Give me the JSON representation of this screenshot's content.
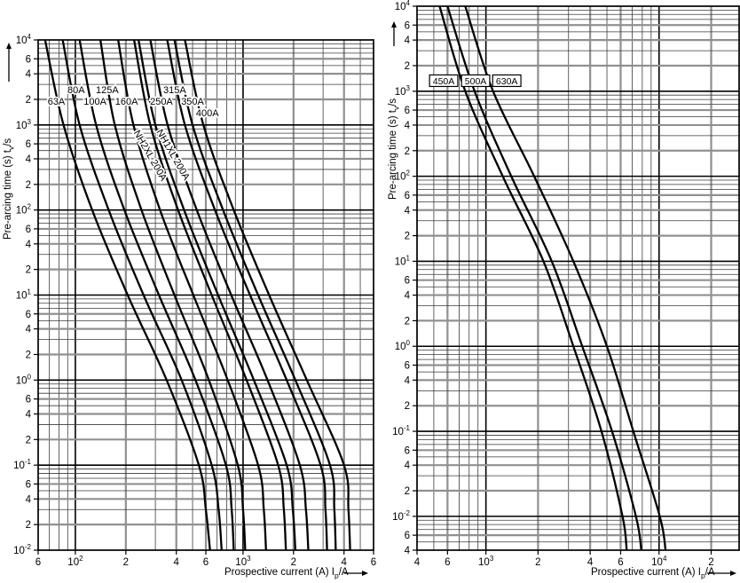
{
  "page": {
    "background": "#ffffff"
  },
  "colors": {
    "curve": "#000000",
    "decade_line": "#000000",
    "thick_sub_line": "#909090",
    "minor_line": "#3a3a3a",
    "text": "#000000"
  },
  "axis_titles": {
    "y_pre": "Pre-arcing time (s) t",
    "y_sub": "v",
    "y_post": "/s",
    "x_pre": "Prospective current (A) I",
    "x_sub": "p",
    "x_post": "/A"
  },
  "chart_data": [
    {
      "id": "left",
      "type": "line",
      "xlabel": "Prospective current (A) Ip/A",
      "ylabel": "Pre-arcing time (s) tv/s",
      "x_axis": {
        "scale": "log",
        "range": [
          60,
          6000
        ],
        "ticks": [
          [
            60,
            "6"
          ],
          [
            100,
            "10^2"
          ],
          [
            200,
            "2"
          ],
          [
            400,
            "4"
          ],
          [
            600,
            "6"
          ],
          [
            1000,
            "10^3"
          ],
          [
            2000,
            "2"
          ],
          [
            4000,
            "4"
          ],
          [
            6000,
            "6"
          ]
        ]
      },
      "y_axis": {
        "scale": "log",
        "range": [
          0.01,
          10000
        ],
        "ticks": [
          [
            10000,
            "10^4"
          ],
          [
            6000,
            "6"
          ],
          [
            4000,
            "4"
          ],
          [
            2000,
            "2"
          ],
          [
            1000,
            "10^3"
          ],
          [
            600,
            "6"
          ],
          [
            400,
            "4"
          ],
          [
            200,
            "2"
          ],
          [
            100,
            "10^2"
          ],
          [
            60,
            "6"
          ],
          [
            40,
            "4"
          ],
          [
            20,
            "2"
          ],
          [
            10,
            "10^1"
          ],
          [
            6,
            "6"
          ],
          [
            4,
            "4"
          ],
          [
            2,
            "2"
          ],
          [
            1,
            "10^0"
          ],
          [
            0.6,
            "6"
          ],
          [
            0.4,
            "4"
          ],
          [
            0.2,
            "2"
          ],
          [
            0.1,
            "10^-1"
          ],
          [
            0.06,
            "6"
          ],
          [
            0.04,
            "4"
          ],
          [
            0.02,
            "2"
          ],
          [
            0.01,
            "10^-2"
          ]
        ]
      },
      "series": [
        {
          "name": "63A",
          "points": [
            [
              66,
              10000
            ],
            [
              85,
              1000
            ],
            [
              126,
              100
            ],
            [
              205,
              10
            ],
            [
              350,
              1
            ],
            [
              545,
              0.1
            ],
            [
              600,
              0.03
            ],
            [
              635,
              0.01
            ]
          ]
        },
        {
          "name": "80A",
          "points": [
            [
              84,
              10000
            ],
            [
              106,
              1000
            ],
            [
              158,
              100
            ],
            [
              255,
              10
            ],
            [
              430,
              1
            ],
            [
              650,
              0.1
            ],
            [
              715,
              0.03
            ],
            [
              745,
              0.01
            ]
          ]
        },
        {
          "name": "100A",
          "points": [
            [
              106,
              10000
            ],
            [
              133,
              1000
            ],
            [
              196,
              100
            ],
            [
              315,
              10
            ],
            [
              520,
              1
            ],
            [
              790,
              0.1
            ],
            [
              855,
              0.03
            ],
            [
              880,
              0.01
            ]
          ]
        },
        {
          "name": "125A",
          "points": [
            [
              141,
              10000
            ],
            [
              172,
              1000
            ],
            [
              248,
              100
            ],
            [
              390,
              10
            ],
            [
              625,
              1
            ],
            [
              930,
              0.1
            ],
            [
              1000,
              0.03
            ],
            [
              1030,
              0.01
            ]
          ]
        },
        {
          "name": "160A",
          "points": [
            [
              180,
              10000
            ],
            [
              222,
              1000
            ],
            [
              320,
              100
            ],
            [
              505,
              10
            ],
            [
              810,
              1
            ],
            [
              1230,
              0.1
            ],
            [
              1330,
              0.03
            ],
            [
              1370,
              0.01
            ]
          ]
        },
        {
          "name": "NH2XL 200A",
          "points": [
            [
              224,
              10000
            ],
            [
              280,
              1000
            ],
            [
              410,
              100
            ],
            [
              650,
              10
            ],
            [
              1050,
              1
            ],
            [
              1620,
              0.1
            ],
            [
              1750,
              0.03
            ],
            [
              1800,
              0.01
            ]
          ]
        },
        {
          "name": "NH1XL 200A",
          "points": [
            [
              238,
              10000
            ],
            [
              300,
              1000
            ],
            [
              445,
              100
            ],
            [
              710,
              10
            ],
            [
              1160,
              1
            ],
            [
              1820,
              0.1
            ],
            [
              1980,
              0.03
            ],
            [
              2050,
              0.01
            ]
          ]
        },
        {
          "name": "250A",
          "points": [
            [
              280,
              10000
            ],
            [
              355,
              1000
            ],
            [
              530,
              100
            ],
            [
              850,
              10
            ],
            [
              1400,
              1
            ],
            [
              2180,
              0.1
            ],
            [
              2370,
              0.03
            ],
            [
              2450,
              0.01
            ]
          ]
        },
        {
          "name": "315A",
          "points": [
            [
              353,
              10000
            ],
            [
              450,
              1000
            ],
            [
              680,
              100
            ],
            [
              1100,
              10
            ],
            [
              1820,
              1
            ],
            [
              2900,
              0.1
            ],
            [
              3100,
              0.03
            ],
            [
              3170,
              0.01
            ]
          ]
        },
        {
          "name": "350A",
          "points": [
            [
              390,
              10000
            ],
            [
              500,
              1000
            ],
            [
              760,
              100
            ],
            [
              1230,
              10
            ],
            [
              2050,
              1
            ],
            [
              3300,
              0.1
            ],
            [
              3500,
              0.03
            ],
            [
              3570,
              0.01
            ]
          ]
        },
        {
          "name": "400A",
          "points": [
            [
              450,
              10000
            ],
            [
              580,
              1000
            ],
            [
              880,
              100
            ],
            [
              1430,
              10
            ],
            [
              2400,
              1
            ],
            [
              4000,
              0.1
            ],
            [
              4250,
              0.03
            ],
            [
              4350,
              0.01
            ]
          ]
        }
      ],
      "annotations": [
        {
          "text": "80A",
          "at": [
            101,
            2600
          ],
          "style": "plain",
          "rotate": 0
        },
        {
          "text": "125A",
          "at": [
            155,
            2600
          ],
          "style": "plain",
          "rotate": 0
        },
        {
          "text": "315A",
          "at": [
            391,
            2600
          ],
          "style": "plain",
          "rotate": 0
        },
        {
          "text": "63A",
          "at": [
            77,
            1900
          ],
          "style": "plain",
          "rotate": 0
        },
        {
          "text": "100A",
          "at": [
            131,
            1900
          ],
          "style": "plain",
          "rotate": 0
        },
        {
          "text": "160A",
          "at": [
            202,
            1900
          ],
          "style": "plain",
          "rotate": 0
        },
        {
          "text": "250A",
          "at": [
            326,
            1900
          ],
          "style": "plain",
          "rotate": 0
        },
        {
          "text": "350A",
          "at": [
            500,
            1900
          ],
          "style": "plain",
          "rotate": 0
        },
        {
          "text": "400A",
          "at": [
            613,
            1400
          ],
          "style": "plain",
          "rotate": 0
        },
        {
          "text": "NH2XL 200A",
          "at": [
            281,
            440
          ],
          "style": "plain",
          "rotate": 60
        },
        {
          "text": "NH1XL 200A",
          "at": [
            385,
            450
          ],
          "style": "plain",
          "rotate": 60
        }
      ]
    },
    {
      "id": "right",
      "type": "line",
      "xlabel": "Prospective current (A) Ip/A",
      "ylabel": "Pre-arcing time (s) tv/s",
      "x_axis": {
        "scale": "log",
        "range": [
          400,
          29000
        ],
        "ticks": [
          [
            400,
            "4"
          ],
          [
            600,
            "6"
          ],
          [
            1000,
            "10^3"
          ],
          [
            2000,
            "2"
          ],
          [
            4000,
            "4"
          ],
          [
            6000,
            "6"
          ],
          [
            10000,
            "10^4"
          ],
          [
            20000,
            "2"
          ]
        ]
      },
      "y_axis": {
        "scale": "log",
        "range": [
          0.004,
          10000
        ],
        "ticks": [
          [
            10000,
            "10^4"
          ],
          [
            6000,
            "6"
          ],
          [
            4000,
            "4"
          ],
          [
            2000,
            "2"
          ],
          [
            1000,
            "10^3"
          ],
          [
            600,
            "6"
          ],
          [
            400,
            "4"
          ],
          [
            200,
            "2"
          ],
          [
            100,
            "10^2"
          ],
          [
            60,
            "6"
          ],
          [
            40,
            "4"
          ],
          [
            20,
            "2"
          ],
          [
            10,
            "10^1"
          ],
          [
            6,
            "6"
          ],
          [
            4,
            "4"
          ],
          [
            2,
            "2"
          ],
          [
            1,
            "10^0"
          ],
          [
            0.6,
            "6"
          ],
          [
            0.4,
            "4"
          ],
          [
            0.2,
            "2"
          ],
          [
            0.1,
            "10^-1"
          ],
          [
            0.06,
            "6"
          ],
          [
            0.04,
            "4"
          ],
          [
            0.02,
            "2"
          ],
          [
            0.01,
            "10^-2"
          ],
          [
            0.006,
            "6"
          ],
          [
            0.004,
            "4"
          ]
        ]
      },
      "series": [
        {
          "name": "450A",
          "points": [
            [
              540,
              10000
            ],
            [
              760,
              1000
            ],
            [
              1250,
              100
            ],
            [
              2150,
              10
            ],
            [
              3200,
              1
            ],
            [
              4650,
              0.1
            ],
            [
              6150,
              0.01
            ],
            [
              6500,
              0.004
            ]
          ]
        },
        {
          "name": "500A",
          "points": [
            [
              600,
              10000
            ],
            [
              860,
              1000
            ],
            [
              1400,
              100
            ],
            [
              2400,
              10
            ],
            [
              3600,
              1
            ],
            [
              5350,
              0.1
            ],
            [
              7350,
              0.01
            ],
            [
              7900,
              0.004
            ]
          ]
        },
        {
          "name": "630A",
          "points": [
            [
              760,
              10000
            ],
            [
              1100,
              1000
            ],
            [
              1900,
              100
            ],
            [
              3200,
              10
            ],
            [
              5000,
              1
            ],
            [
              7100,
              0.1
            ],
            [
              10100,
              0.01
            ],
            [
              10900,
              0.004
            ]
          ]
        }
      ],
      "annotations": [
        {
          "text": "450A",
          "at": [
            570,
            1330
          ],
          "style": "boxed",
          "rotate": 0
        },
        {
          "text": "500A",
          "at": [
            872,
            1330
          ],
          "style": "boxed",
          "rotate": 0
        },
        {
          "text": "630A",
          "at": [
            1320,
            1330
          ],
          "style": "boxed",
          "rotate": 0
        }
      ]
    }
  ]
}
